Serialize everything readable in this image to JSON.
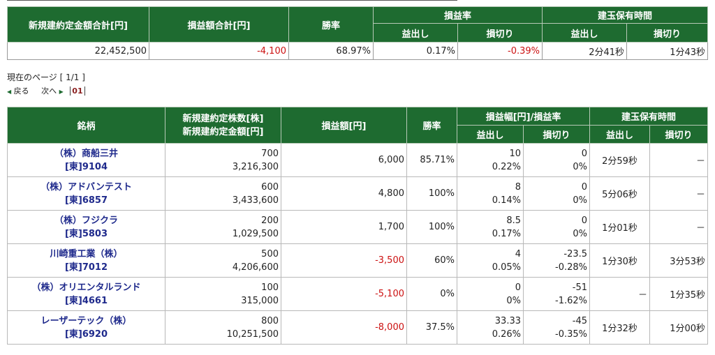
{
  "summary": {
    "headers": {
      "total_amount": "新規建約定金額合計[円]",
      "total_pl": "損益額合計[円]",
      "win_rate": "勝率",
      "pl_rate": "損益率",
      "holding_time": "建玉保有時間",
      "profit": "益出し",
      "loss": "損切り"
    },
    "values": {
      "total_amount": "22,452,500",
      "total_pl": "-4,100",
      "win_rate": "68.97%",
      "rate_profit": "0.17%",
      "rate_loss": "-0.39%",
      "time_profit": "2分41秒",
      "time_loss": "1分43秒"
    }
  },
  "pager": {
    "current": "現在のページ [ 1/1 ]",
    "back": "戻る",
    "next": "次へ",
    "page": "01"
  },
  "detail": {
    "headers": {
      "stock": "銘柄",
      "shares": "新規建約定株数[株]",
      "amount": "新規建約定金額[円]",
      "pl": "損益額[円]",
      "win_rate": "勝率",
      "pl_range": "損益幅[円]/損益率",
      "holding_time": "建玉保有時間",
      "profit": "益出し",
      "loss": "損切り"
    },
    "rows": [
      {
        "name": "（株）商船三井",
        "code": "[東]9104",
        "shares": "700",
        "amount": "3,216,300",
        "pl": "6,000",
        "win": "85.71%",
        "p_width": "10",
        "p_rate": "0.22%",
        "l_width": "0",
        "l_rate": "0%",
        "t_profit": "2分59秒",
        "t_loss": "－"
      },
      {
        "name": "（株）アドバンテスト",
        "code": "[東]6857",
        "shares": "600",
        "amount": "3,433,600",
        "pl": "4,800",
        "win": "100%",
        "p_width": "8",
        "p_rate": "0.14%",
        "l_width": "0",
        "l_rate": "0%",
        "t_profit": "5分06秒",
        "t_loss": "－"
      },
      {
        "name": "（株）フジクラ",
        "code": "[東]5803",
        "shares": "200",
        "amount": "1,029,500",
        "pl": "1,700",
        "win": "100%",
        "p_width": "8.5",
        "p_rate": "0.17%",
        "l_width": "0",
        "l_rate": "0%",
        "t_profit": "1分01秒",
        "t_loss": "－"
      },
      {
        "name": "川崎重工業（株）",
        "code": "[東]7012",
        "shares": "500",
        "amount": "4,206,600",
        "pl": "-3,500",
        "win": "60%",
        "p_width": "4",
        "p_rate": "0.05%",
        "l_width": "-23.5",
        "l_rate": "-0.28%",
        "t_profit": "1分30秒",
        "t_loss": "3分53秒"
      },
      {
        "name": "（株）オリエンタルランド",
        "code": "[東]4661",
        "shares": "100",
        "amount": "315,000",
        "pl": "-5,100",
        "win": "0%",
        "p_width": "0",
        "p_rate": "0%",
        "l_width": "-51",
        "l_rate": "-1.62%",
        "t_profit": "－",
        "t_loss": "1分35秒"
      },
      {
        "name": "レーザーテック（株）",
        "code": "[東]6920",
        "shares": "800",
        "amount": "10,251,500",
        "pl": "-8,000",
        "win": "37.5%",
        "p_width": "33.33",
        "p_rate": "0.26%",
        "l_width": "-45",
        "l_rate": "-0.35%",
        "t_profit": "1分32秒",
        "t_loss": "1分00秒"
      }
    ]
  }
}
